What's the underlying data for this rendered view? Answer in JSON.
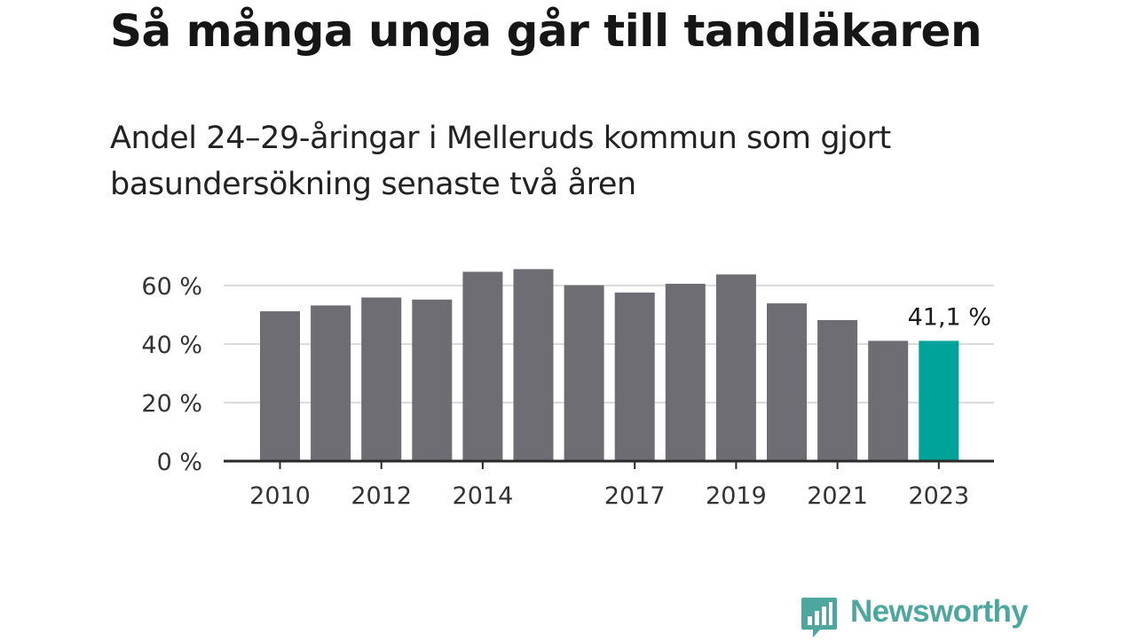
{
  "header": {
    "title": "Så många unga går till tandläkaren",
    "subtitle": "Andel 24–29-åringar i Melleruds kommun som gjort basundersökning senaste två åren"
  },
  "brand": {
    "name": "Newsworthy",
    "icon": "newsworthy-logo-icon",
    "color": "#4da79f"
  },
  "chart_data": {
    "type": "bar",
    "title": "Så många unga går till tandläkaren",
    "subtitle": "Andel 24–29-åringar i Melleruds kommun som gjort basundersökning senaste två åren",
    "xlabel": "",
    "ylabel": "",
    "categories": [
      "2010",
      "2011",
      "2012",
      "2013",
      "2014",
      "2015",
      "2016",
      "2017",
      "2018",
      "2019",
      "2020",
      "2021",
      "2022",
      "2023"
    ],
    "values": [
      51.2,
      53.2,
      55.9,
      55.2,
      64.7,
      65.6,
      60.1,
      57.6,
      60.6,
      63.8,
      53.9,
      48.2,
      41.1,
      41.1
    ],
    "x_tick_labels": [
      "2010",
      "2012",
      "2014",
      "2017",
      "2019",
      "2021",
      "2023"
    ],
    "y_ticks": [
      0,
      20,
      40,
      60
    ],
    "y_tick_labels": [
      "0 %",
      "20 %",
      "40 %",
      "60 %"
    ],
    "ylim": [
      0,
      66
    ],
    "grid": true,
    "highlight_index": 13,
    "bar_color": "#6e6d73",
    "highlight_color": "#00a39a",
    "annotation": {
      "index": 13,
      "text": "41,1 %"
    }
  }
}
